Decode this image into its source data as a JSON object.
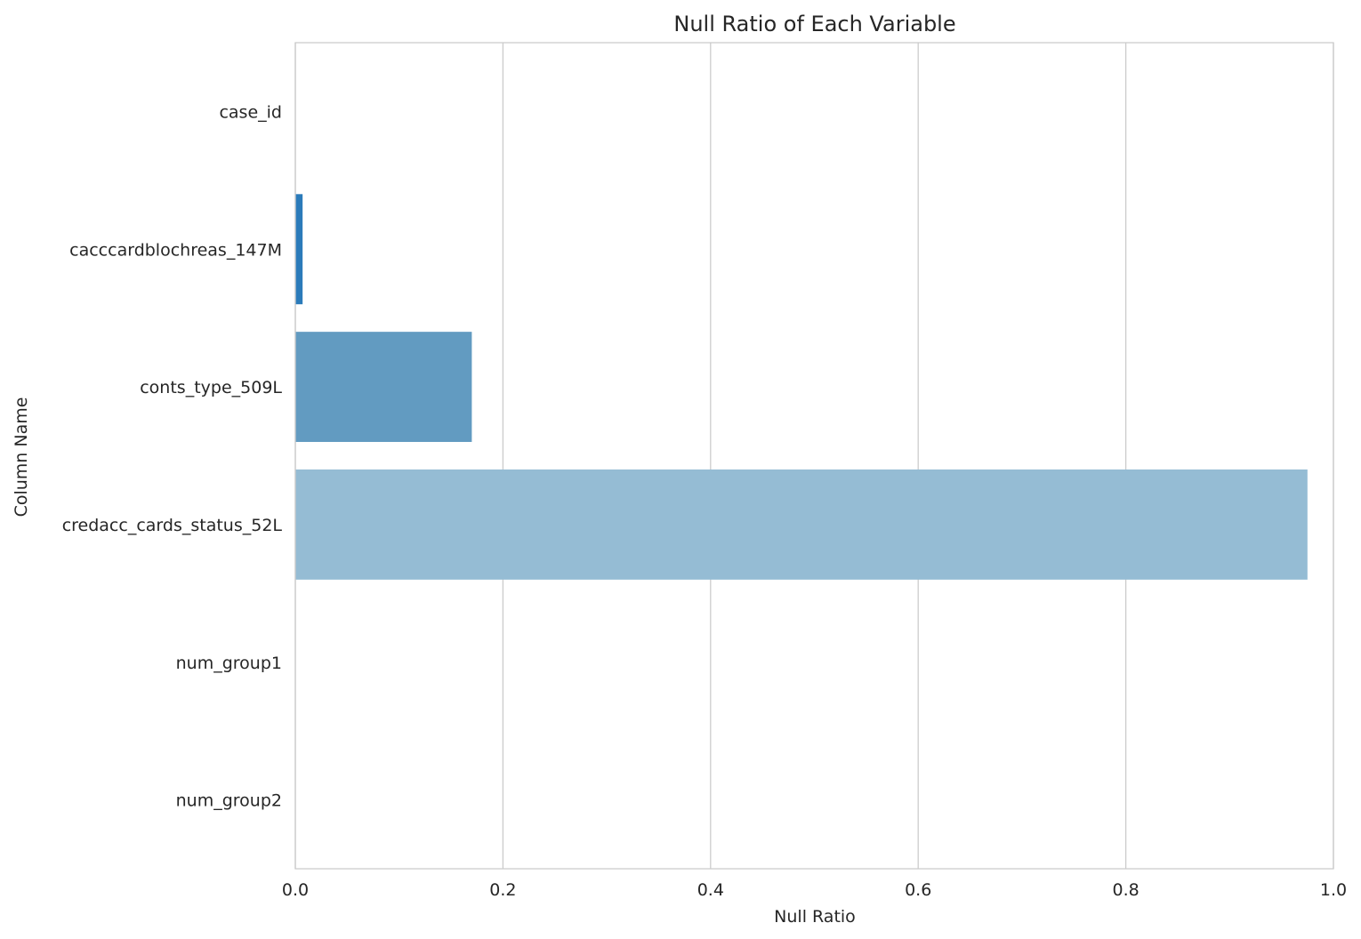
{
  "chart_data": {
    "type": "bar",
    "orientation": "horizontal",
    "title": "Null Ratio of Each Variable",
    "xlabel": "Null Ratio",
    "ylabel": "Column Name",
    "xlim": [
      0.0,
      1.0
    ],
    "xticks": [
      "0.0",
      "0.2",
      "0.4",
      "0.6",
      "0.8",
      "1.0"
    ],
    "grid": "vertical",
    "categories": [
      "case_id",
      "cacccardblochreas_147M",
      "conts_type_509L",
      "credacc_cards_status_52L",
      "num_group1",
      "num_group2"
    ],
    "values": [
      0.0,
      0.007,
      0.17,
      0.975,
      0.0,
      0.0
    ],
    "colors": [
      "#08306b",
      "#2b7bba",
      "#629bc1",
      "#95bcd4",
      "#c6dbef",
      "#e3eef8"
    ]
  }
}
